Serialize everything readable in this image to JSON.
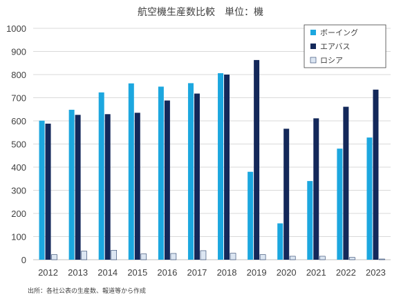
{
  "chart_data": {
    "type": "bar",
    "title": "航空機生産数比較　単位：機",
    "categories": [
      "2012",
      "2013",
      "2014",
      "2015",
      "2016",
      "2017",
      "2018",
      "2019",
      "2020",
      "2021",
      "2022",
      "2023"
    ],
    "series": [
      {
        "name": "ボーイング",
        "color": "#1CA7DF",
        "values": [
          601,
          648,
          723,
          762,
          748,
          763,
          806,
          380,
          157,
          340,
          480,
          528
        ]
      },
      {
        "name": "エアバス",
        "color": "#13285A",
        "values": [
          588,
          626,
          629,
          635,
          688,
          718,
          800,
          863,
          566,
          611,
          661,
          735
        ]
      },
      {
        "name": "ロシア",
        "color": "#DCE6F2",
        "values": [
          22,
          37,
          41,
          25,
          27,
          39,
          28,
          22,
          15,
          15,
          10,
          3
        ]
      }
    ],
    "ylim": [
      0,
      1000
    ],
    "yticks": [
      "0",
      "100",
      "200",
      "300",
      "400",
      "500",
      "600",
      "700",
      "800",
      "900",
      "1000"
    ],
    "grid": true,
    "legend_position": "top-right",
    "source": "出所：各社公表の生産数、報道等から作成"
  }
}
